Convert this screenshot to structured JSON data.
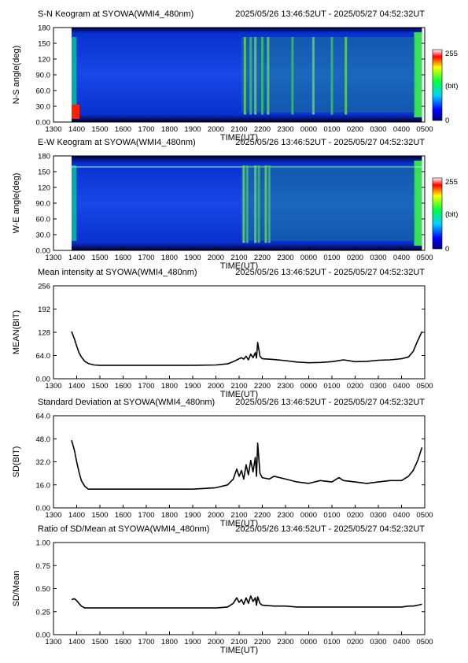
{
  "station": "SYOWA",
  "time_range": "2025/05/26 13:46:52UT - 2025/05/27 04:52:32UT",
  "chart_data": [
    {
      "type": "heatmap",
      "title": "S-N Keogram at SYOWA(WMI4_480nm)",
      "subtitle": "2025/05/26 13:46:52UT - 2025/05/27 04:52:32UT",
      "xlabel": "TIME(UT)",
      "ylabel": "N-S angle(deg)",
      "x_ticks": [
        "1300",
        "1400",
        "1500",
        "1600",
        "1700",
        "1800",
        "1900",
        "2000",
        "2100",
        "2200",
        "2300",
        "0000",
        "0100",
        "0200",
        "0300",
        "0400",
        "0500"
      ],
      "y_ticks": [
        "0.00",
        "30.0",
        "60.0",
        "90.0",
        "120",
        "150",
        "180"
      ],
      "ylim": [
        0,
        180
      ],
      "data_start_hour": 13.78,
      "data_end_hour": 28.88,
      "colorbar": {
        "min_label": "0",
        "max_label": "255",
        "unit": "(bit)"
      },
      "features": {
        "bright_bands_hours": [
          21.25,
          21.5,
          21.7,
          22.0,
          22.25,
          23.3,
          24.2,
          25.0,
          25.6
        ],
        "edge_brightening": true
      }
    },
    {
      "type": "heatmap",
      "title": "E-W Keogram at SYOWA(WMI4_480nm)",
      "subtitle": "2025/05/26 13:46:52UT - 2025/05/27 04:52:32UT",
      "xlabel": "TIME(UT)",
      "ylabel": "W-E angle(deg)",
      "x_ticks": [
        "1300",
        "1400",
        "1500",
        "1600",
        "1700",
        "1800",
        "1900",
        "2000",
        "2100",
        "2200",
        "2300",
        "0000",
        "0100",
        "0200",
        "0300",
        "0400",
        "0500"
      ],
      "y_ticks": [
        "0.00",
        "30.0",
        "60.0",
        "90.0",
        "120",
        "150",
        "180"
      ],
      "ylim": [
        0,
        180
      ],
      "data_start_hour": 13.78,
      "data_end_hour": 28.88,
      "colorbar": {
        "min_label": "0",
        "max_label": "255",
        "unit": "(bit)"
      },
      "features": {
        "bright_bands_hours": [
          21.2,
          21.35,
          21.7,
          21.85,
          22.15,
          22.3
        ],
        "edge_brightening": true
      }
    },
    {
      "type": "line",
      "title": "Mean intensity at SYOWA(WMI4_480nm)",
      "subtitle": "2025/05/26 13:46:52UT - 2025/05/27 04:52:32UT",
      "xlabel": "TIME(UT)",
      "ylabel": "MEAN(BIT)",
      "y_ticks": [
        "0.00",
        "64.0",
        "128",
        "192",
        "256"
      ],
      "ylim": [
        0,
        256
      ],
      "x_ticks": [
        "1300",
        "1400",
        "1500",
        "1600",
        "1700",
        "1800",
        "1900",
        "2000",
        "2100",
        "2200",
        "2300",
        "0000",
        "0100",
        "0200",
        "0300",
        "0400",
        "0500"
      ],
      "xlim_hours": [
        13,
        29
      ],
      "x": [
        13.78,
        13.9,
        14.0,
        14.1,
        14.2,
        14.35,
        14.5,
        14.75,
        15.0,
        16.0,
        17.0,
        18.0,
        19.0,
        20.0,
        20.5,
        20.75,
        21.0,
        21.1,
        21.2,
        21.3,
        21.4,
        21.5,
        21.6,
        21.7,
        21.75,
        21.8,
        21.9,
        22.0,
        22.5,
        23.0,
        23.5,
        24.0,
        24.5,
        25.0,
        25.5,
        26.0,
        26.5,
        27.0,
        27.5,
        28.0,
        28.3,
        28.5,
        28.7,
        28.88
      ],
      "y": [
        130,
        110,
        90,
        72,
        60,
        48,
        42,
        38,
        37,
        37,
        37,
        37,
        37,
        38,
        41,
        47,
        55,
        58,
        54,
        62,
        52,
        68,
        58,
        72,
        57,
        100,
        62,
        55,
        53,
        50,
        46,
        44,
        45,
        47,
        52,
        47,
        48,
        51,
        52,
        55,
        60,
        75,
        105,
        130
      ]
    },
    {
      "type": "line",
      "title": "Standard Deviation at SYOWA(WMI4_480nm)",
      "subtitle": "2025/05/26 13:46:52UT - 2025/05/27 04:52:32UT",
      "xlabel": "TIME(UT)",
      "ylabel": "SD(BIT)",
      "y_ticks": [
        "0.00",
        "16.0",
        "32.0",
        "48.0",
        "64.0"
      ],
      "ylim": [
        0,
        64
      ],
      "x_ticks": [
        "1300",
        "1400",
        "1500",
        "1600",
        "1700",
        "1800",
        "1900",
        "2000",
        "2100",
        "2200",
        "2300",
        "0000",
        "0100",
        "0200",
        "0300",
        "0400",
        "0500"
      ],
      "xlim_hours": [
        13,
        29
      ],
      "x": [
        13.78,
        13.9,
        14.0,
        14.1,
        14.2,
        14.35,
        14.5,
        15.0,
        16.0,
        17.0,
        18.0,
        19.0,
        20.0,
        20.5,
        20.75,
        20.9,
        21.0,
        21.1,
        21.2,
        21.3,
        21.4,
        21.5,
        21.6,
        21.7,
        21.75,
        21.8,
        21.9,
        22.0,
        22.3,
        22.5,
        23.0,
        23.5,
        24.0,
        24.5,
        25.0,
        25.3,
        25.5,
        26.0,
        26.5,
        27.0,
        27.5,
        28.0,
        28.3,
        28.5,
        28.7,
        28.88
      ],
      "y": [
        47,
        40,
        32,
        25,
        19,
        15,
        13,
        13,
        13,
        13,
        13,
        13,
        14,
        16,
        20,
        27,
        22,
        26,
        20,
        30,
        23,
        33,
        25,
        35,
        22,
        45,
        24,
        21,
        20,
        22,
        20,
        18,
        17,
        19,
        18,
        21,
        19,
        18,
        17,
        18,
        19,
        19,
        22,
        26,
        33,
        42
      ]
    },
    {
      "type": "line",
      "title": "Ratio of SD/Mean at SYOWA(WMI4_480nm)",
      "subtitle": "2025/05/26 13:46:52UT - 2025/05/27 04:52:32UT",
      "xlabel": "TIME(UT)",
      "ylabel": "SD/Mean",
      "y_ticks": [
        "0.00",
        "0.25",
        "0.50",
        "0.75",
        "1.00"
      ],
      "ylim": [
        0,
        1
      ],
      "x_ticks": [
        "1300",
        "1400",
        "1500",
        "1600",
        "1700",
        "1800",
        "1900",
        "2000",
        "2100",
        "2200",
        "2300",
        "0000",
        "0100",
        "0200",
        "0300",
        "0400",
        "0500"
      ],
      "xlim_hours": [
        13,
        29
      ],
      "x": [
        13.78,
        13.9,
        14.0,
        14.1,
        14.2,
        14.35,
        14.5,
        15.0,
        16.0,
        17.0,
        18.0,
        19.0,
        20.0,
        20.5,
        20.75,
        20.9,
        21.0,
        21.1,
        21.2,
        21.3,
        21.4,
        21.5,
        21.6,
        21.7,
        21.75,
        21.8,
        21.9,
        22.0,
        22.5,
        23.0,
        23.5,
        24.0,
        24.5,
        25.0,
        25.5,
        26.0,
        26.5,
        27.0,
        27.5,
        28.0,
        28.3,
        28.5,
        28.7,
        28.88
      ],
      "y": [
        0.38,
        0.39,
        0.37,
        0.34,
        0.31,
        0.29,
        0.29,
        0.29,
        0.29,
        0.29,
        0.29,
        0.29,
        0.29,
        0.3,
        0.34,
        0.4,
        0.35,
        0.38,
        0.33,
        0.4,
        0.34,
        0.42,
        0.36,
        0.4,
        0.32,
        0.41,
        0.34,
        0.32,
        0.31,
        0.31,
        0.3,
        0.3,
        0.3,
        0.3,
        0.3,
        0.3,
        0.3,
        0.3,
        0.3,
        0.3,
        0.31,
        0.31,
        0.32,
        0.33
      ]
    }
  ]
}
